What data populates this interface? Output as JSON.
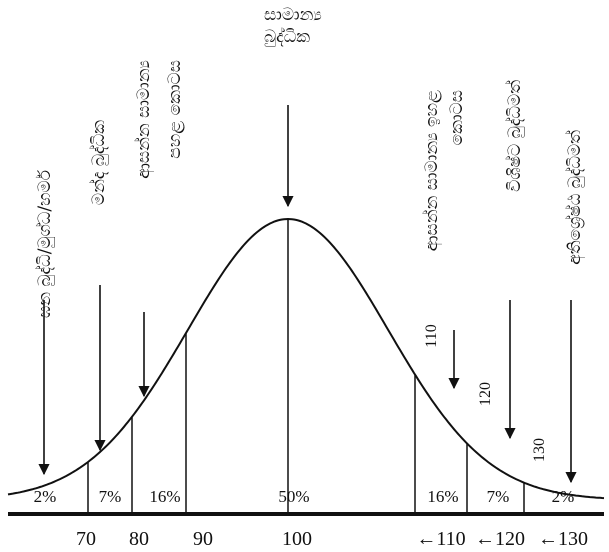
{
  "chart_data": {
    "type": "diagram",
    "title": "",
    "xlabel": "",
    "ylabel": "",
    "axis_ticks": [
      "70",
      "80",
      "90",
      "100",
      "←110",
      "←120",
      "←130"
    ],
    "inner_value_labels": [
      "110",
      "120",
      "130"
    ],
    "region_percentages": [
      "2%",
      "7%",
      "16%",
      "50%",
      "16%",
      "7%",
      "2%"
    ],
    "categories": [
      "ඝන බුද්ධි/මුග්ධ/හර්ම",
      "මන්ද බුද්ධික",
      "ආසන්න සාමාන්‍ය පහළ කොටස",
      "සාමාන්‍ය බුද්ධික",
      "ආසන්න සාමාන්‍ය ඉහළ කොටස",
      "විශිෂ්ට බුද්ධිමත්",
      "අතිශ්‍රේෂ්ඨ බුද්ධිමත්"
    ],
    "curve": "normal"
  }
}
